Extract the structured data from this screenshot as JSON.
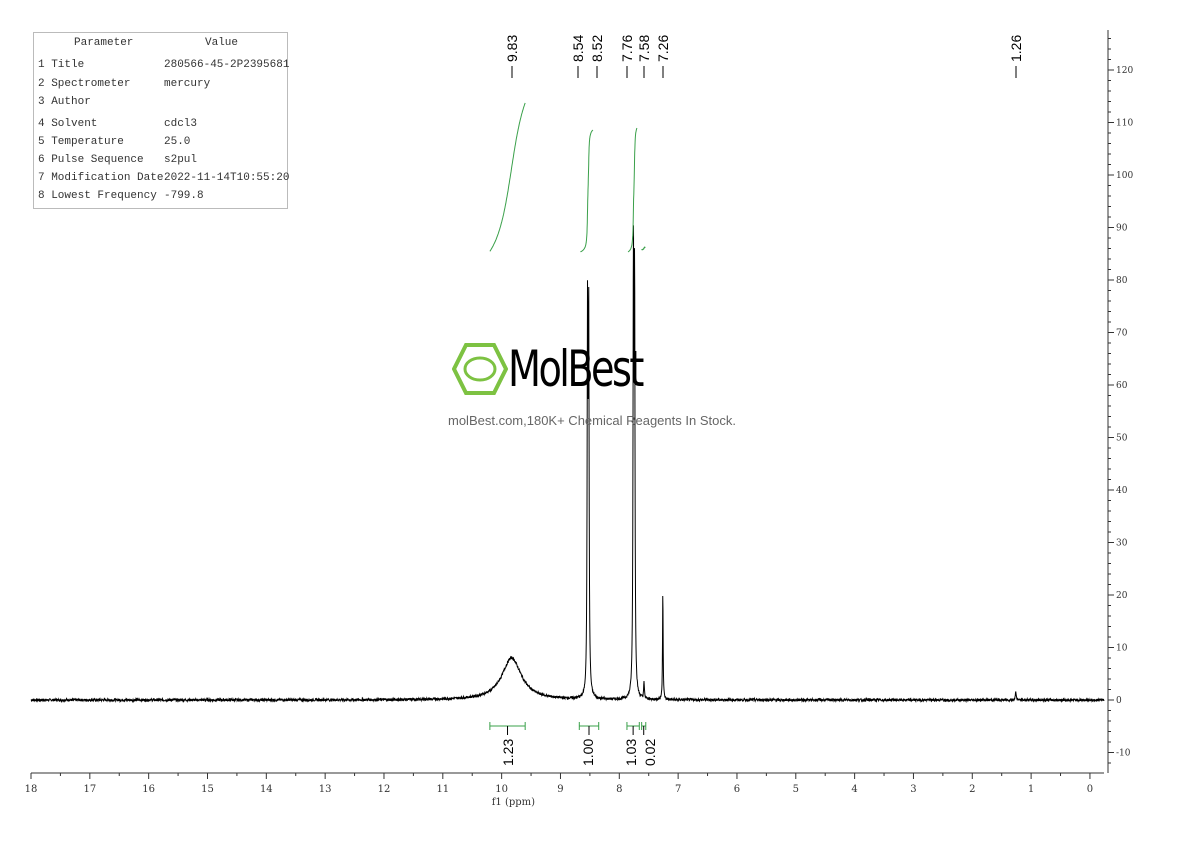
{
  "parameters": {
    "header": [
      "Parameter",
      "Value"
    ],
    "rows": [
      {
        "label": "1 Title",
        "value": "280566-45-2P2395681"
      },
      {
        "label": "2 Spectrometer",
        "value": "mercury"
      },
      {
        "label": "3 Author",
        "value": ""
      },
      {
        "label": "4 Solvent",
        "value": "cdcl3"
      },
      {
        "label": "5 Temperature",
        "value": "25.0"
      },
      {
        "label": "6 Pulse Sequence",
        "value": "s2pul"
      },
      {
        "label": "7 Modification Date",
        "value": "2022-11-14T10:55:20"
      },
      {
        "label": "8 Lowest Frequency",
        "value": "-799.8"
      }
    ]
  },
  "watermark": {
    "brand": "MolBest",
    "tagline": "molBest.com,180K+ Chemical Reagents In Stock.",
    "color": "#7dc242"
  },
  "chart_data": {
    "type": "line",
    "xlabel": "f1 (ppm)",
    "xlim": [
      18,
      0
    ],
    "ylim": [
      -14,
      128
    ],
    "x_ticks": [
      18,
      17,
      16,
      15,
      14,
      13,
      12,
      11,
      10,
      9,
      8,
      7,
      6,
      5,
      4,
      3,
      2,
      1,
      0
    ],
    "y_ticks": [
      -10,
      0,
      10,
      20,
      30,
      40,
      50,
      60,
      70,
      80,
      90,
      100,
      110,
      120
    ],
    "peaks": [
      {
        "ppm": 9.83,
        "height": 8,
        "width": 0.2
      },
      {
        "ppm": 8.54,
        "height": 71,
        "width": 0.008
      },
      {
        "ppm": 8.52,
        "height": 70,
        "width": 0.008
      },
      {
        "ppm": 7.76,
        "height": 81,
        "width": 0.008
      },
      {
        "ppm": 7.74,
        "height": 76,
        "width": 0.008
      },
      {
        "ppm": 7.58,
        "height": 3,
        "width": 0.008
      },
      {
        "ppm": 7.26,
        "height": 21,
        "width": 0.006
      },
      {
        "ppm": 1.26,
        "height": 1.5,
        "width": 0.01
      }
    ],
    "peak_labels": [
      "9.83",
      "8.54",
      "8.52",
      "7.76",
      "7.58",
      "7.26",
      "1.26"
    ],
    "integrals": [
      {
        "from": 10.2,
        "to": 9.6,
        "value": "1.23"
      },
      {
        "from": 8.68,
        "to": 8.35,
        "value": "1.00"
      },
      {
        "from": 7.87,
        "to": 7.66,
        "value": "1.03"
      },
      {
        "from": 7.62,
        "to": 7.55,
        "value": "0.02"
      }
    ],
    "colors": {
      "spectrum": "#000000",
      "integral": "#3aa04a"
    }
  }
}
